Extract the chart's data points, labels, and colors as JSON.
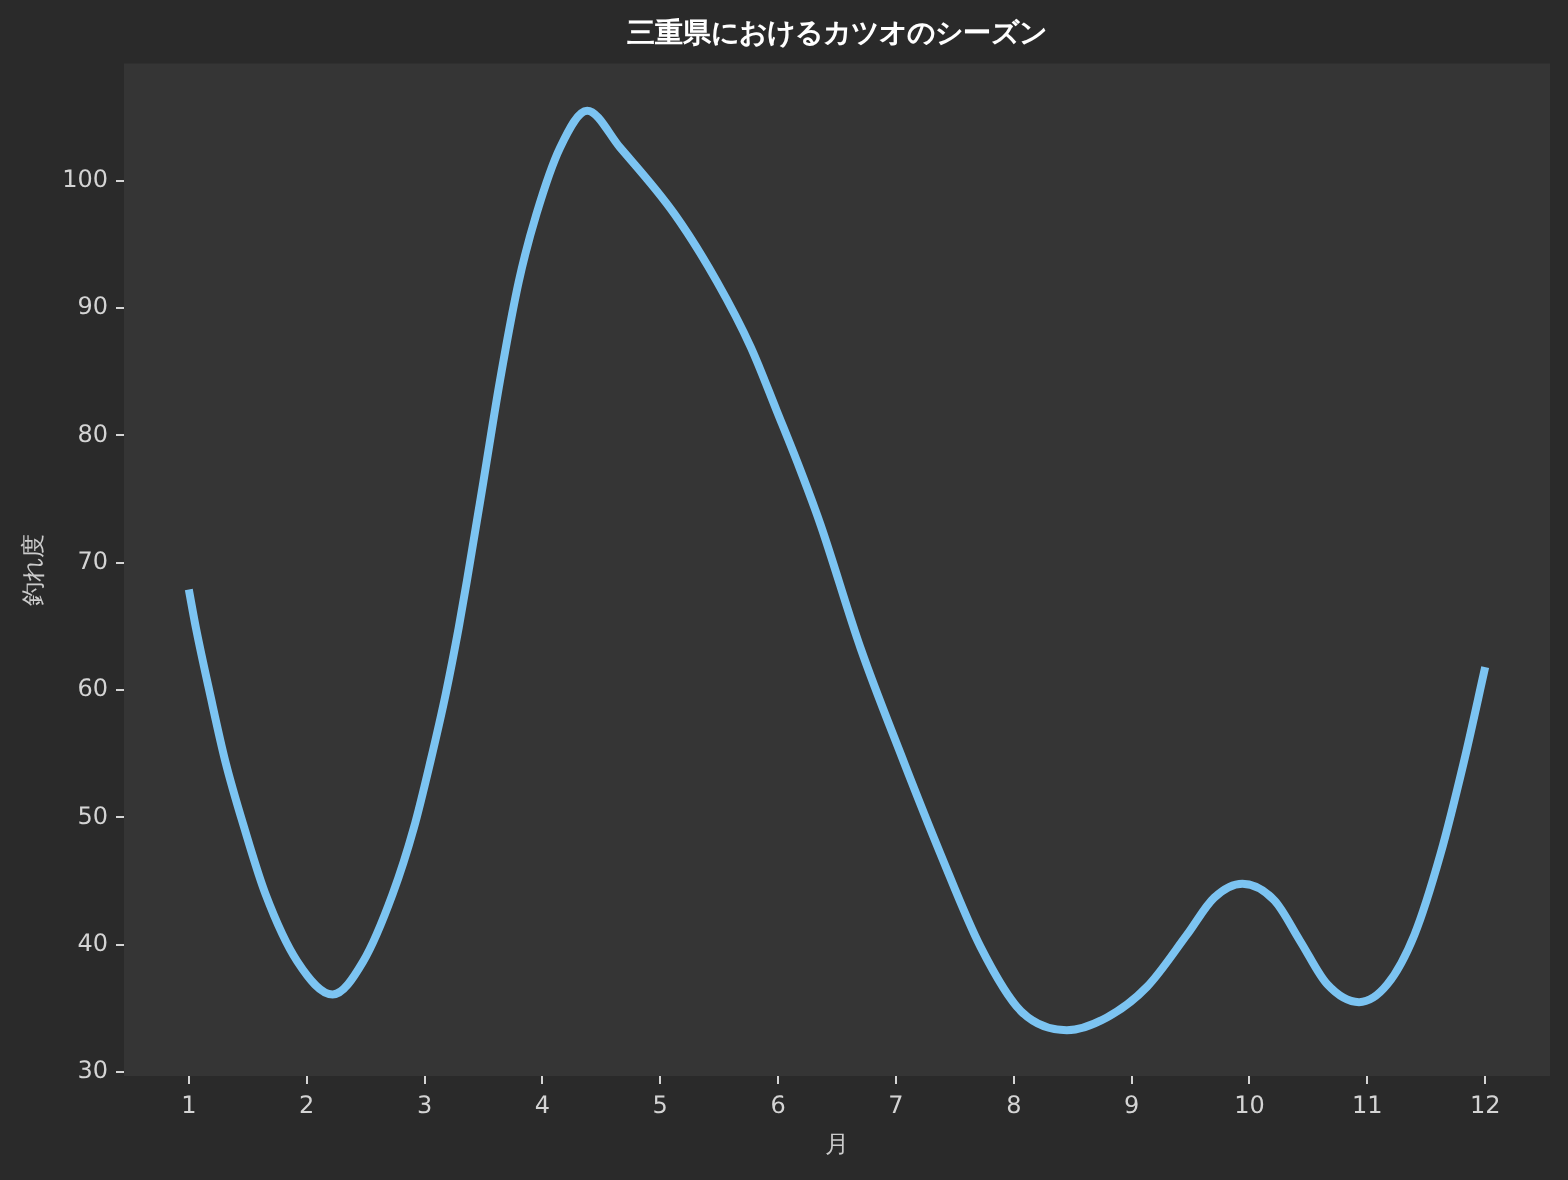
{
  "chart_data": {
    "type": "line",
    "title": "三重県におけるカツオのシーズン",
    "xlabel": "月",
    "ylabel": "釣れ度",
    "x": [
      1,
      1.06,
      1.18,
      1.31,
      1.47,
      1.65,
      1.92,
      2.22,
      2.48,
      2.73,
      2.91,
      3.05,
      3.18,
      3.29,
      3.36,
      3.5,
      3.64,
      3.8,
      3.95,
      4.15,
      4.38,
      4.66,
      5.12,
      5.48,
      5.77,
      5.99,
      6.18,
      6.36,
      6.7,
      7.04,
      7.38,
      7.72,
      8.06,
      8.45,
      8.79,
      9.13,
      9.47,
      9.7,
      9.94,
      10.21,
      10.43,
      10.66,
      10.93,
      11.17,
      11.4,
      11.62,
      11.82,
      12
    ],
    "values": [
      67.9,
      64.9,
      59.7,
      54.4,
      49.2,
      44,
      38.7,
      36.1,
      38.7,
      44,
      49.2,
      54.4,
      59.7,
      64.9,
      68.6,
      76.4,
      84.3,
      92.1,
      97.4,
      102.6,
      105.5,
      102.6,
      97.4,
      92.1,
      86.9,
      81.9,
      77.5,
      73,
      63.3,
      55,
      47.1,
      39.8,
      34.8,
      33.3,
      34.3,
      36.7,
      40.8,
      43.7,
      44.8,
      43.5,
      40.3,
      36.9,
      35.5,
      36.9,
      40.8,
      47.1,
      54.4,
      61.8
    ],
    "color": "#7cc4f2",
    "xlim": [
      0.45,
      12.55
    ],
    "ylim": [
      29.7,
      109.2
    ],
    "xticks": [
      1,
      2,
      3,
      4,
      5,
      6,
      7,
      8,
      9,
      10,
      11,
      12
    ],
    "yticks": [
      30,
      40,
      50,
      60,
      70,
      80,
      90,
      100
    ],
    "grid": false,
    "legend": false,
    "marker": "none",
    "line_style": "solid"
  }
}
